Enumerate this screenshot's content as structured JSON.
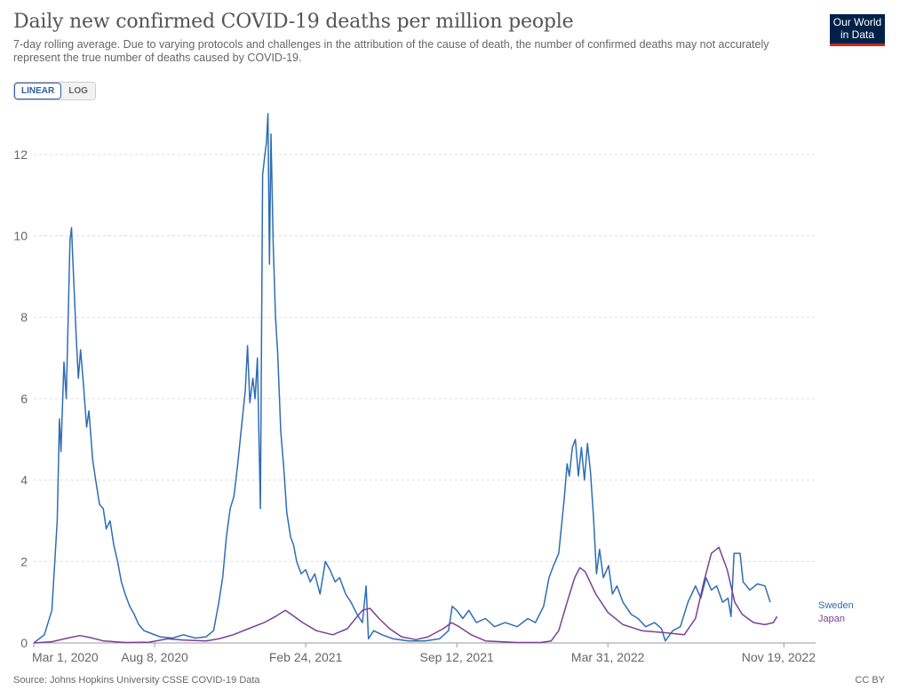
{
  "header": {
    "title": "Daily new confirmed COVID-19 deaths per million people",
    "subtitle": "7-day rolling average. Due to varying protocols and challenges in the attribution of the cause of death, the number of confirmed deaths may not accurately represent the true number of deaths caused by COVID-19.",
    "logo_line1": "Our World",
    "logo_line2": "in Data"
  },
  "toolbar": {
    "linear_label": "LINEAR",
    "log_label": "LOG",
    "active": "linear"
  },
  "footer": {
    "source": "Source: Johns Hopkins University CSSE COVID-19 Data",
    "license": "CC BY"
  },
  "colors": {
    "sweden": "#2e6db4",
    "japan": "#7b3f97",
    "grid": "#dddddd",
    "axis": "#999999"
  },
  "chart_data": {
    "type": "line",
    "title": "Daily new confirmed COVID-19 deaths per million people",
    "xlabel": "",
    "ylabel": "",
    "x_start": "2020-03-01",
    "x_end": "2022-12-31",
    "ylim": [
      0,
      13
    ],
    "yticks": [
      0,
      2,
      4,
      6,
      8,
      10,
      12
    ],
    "xticks": [
      {
        "date": "2020-03-01",
        "label": "Mar 1, 2020"
      },
      {
        "date": "2020-08-08",
        "label": "Aug 8, 2020"
      },
      {
        "date": "2021-02-24",
        "label": "Feb 24, 2021"
      },
      {
        "date": "2021-09-12",
        "label": "Sep 12, 2021"
      },
      {
        "date": "2022-03-31",
        "label": "Mar 31, 2022"
      },
      {
        "date": "2022-11-19",
        "label": "Nov 19, 2022"
      }
    ],
    "grid": "horizontal-dashed",
    "legend": "line-end labels",
    "series": [
      {
        "name": "Sweden",
        "points": [
          [
            "2020-03-01",
            0
          ],
          [
            "2020-03-15",
            0.2
          ],
          [
            "2020-03-25",
            0.8
          ],
          [
            "2020-04-01",
            3.0
          ],
          [
            "2020-04-04",
            5.5
          ],
          [
            "2020-04-06",
            4.7
          ],
          [
            "2020-04-10",
            6.9
          ],
          [
            "2020-04-13",
            6.0
          ],
          [
            "2020-04-18",
            9.9
          ],
          [
            "2020-04-20",
            10.2
          ],
          [
            "2020-04-22",
            9.3
          ],
          [
            "2020-04-26",
            7.6
          ],
          [
            "2020-04-29",
            6.5
          ],
          [
            "2020-05-02",
            7.2
          ],
          [
            "2020-05-06",
            6.3
          ],
          [
            "2020-05-10",
            5.3
          ],
          [
            "2020-05-13",
            5.7
          ],
          [
            "2020-05-18",
            4.5
          ],
          [
            "2020-05-22",
            4.0
          ],
          [
            "2020-05-27",
            3.4
          ],
          [
            "2020-06-01",
            3.3
          ],
          [
            "2020-06-05",
            2.8
          ],
          [
            "2020-06-10",
            3.0
          ],
          [
            "2020-06-15",
            2.4
          ],
          [
            "2020-06-20",
            2.0
          ],
          [
            "2020-06-25",
            1.5
          ],
          [
            "2020-06-30",
            1.2
          ],
          [
            "2020-07-06",
            0.9
          ],
          [
            "2020-07-12",
            0.7
          ],
          [
            "2020-07-18",
            0.45
          ],
          [
            "2020-07-25",
            0.3
          ],
          [
            "2020-08-01",
            0.25
          ],
          [
            "2020-08-15",
            0.15
          ],
          [
            "2020-09-01",
            0.12
          ],
          [
            "2020-09-15",
            0.2
          ],
          [
            "2020-10-01",
            0.12
          ],
          [
            "2020-10-15",
            0.15
          ],
          [
            "2020-10-25",
            0.3
          ],
          [
            "2020-11-01",
            1.0
          ],
          [
            "2020-11-06",
            1.6
          ],
          [
            "2020-11-11",
            2.6
          ],
          [
            "2020-11-16",
            3.3
          ],
          [
            "2020-11-21",
            3.6
          ],
          [
            "2020-11-26",
            4.4
          ],
          [
            "2020-12-01",
            5.3
          ],
          [
            "2020-12-06",
            6.2
          ],
          [
            "2020-12-09",
            7.3
          ],
          [
            "2020-12-12",
            5.9
          ],
          [
            "2020-12-16",
            6.5
          ],
          [
            "2020-12-19",
            6.0
          ],
          [
            "2020-12-22",
            7.0
          ],
          [
            "2020-12-26",
            3.3
          ],
          [
            "2020-12-29",
            11.5
          ],
          [
            "2021-01-01",
            12.0
          ],
          [
            "2021-01-03",
            12.3
          ],
          [
            "2021-01-05",
            13.0
          ],
          [
            "2021-01-07",
            9.3
          ],
          [
            "2021-01-09",
            12.5
          ],
          [
            "2021-01-12",
            9.8
          ],
          [
            "2021-01-15",
            8.0
          ],
          [
            "2021-01-18",
            7.1
          ],
          [
            "2021-01-22",
            5.2
          ],
          [
            "2021-01-26",
            4.3
          ],
          [
            "2021-01-30",
            3.2
          ],
          [
            "2021-02-04",
            2.6
          ],
          [
            "2021-02-08",
            2.4
          ],
          [
            "2021-02-12",
            2.0
          ],
          [
            "2021-02-18",
            1.7
          ],
          [
            "2021-02-24",
            1.8
          ],
          [
            "2021-03-02",
            1.5
          ],
          [
            "2021-03-08",
            1.7
          ],
          [
            "2021-03-15",
            1.2
          ],
          [
            "2021-03-22",
            2.0
          ],
          [
            "2021-03-28",
            1.8
          ],
          [
            "2021-04-04",
            1.5
          ],
          [
            "2021-04-10",
            1.6
          ],
          [
            "2021-04-18",
            1.2
          ],
          [
            "2021-04-25",
            1.0
          ],
          [
            "2021-05-03",
            0.7
          ],
          [
            "2021-05-10",
            0.5
          ],
          [
            "2021-05-15",
            1.4
          ],
          [
            "2021-05-18",
            0.1
          ],
          [
            "2021-05-25",
            0.3
          ],
          [
            "2021-06-05",
            0.2
          ],
          [
            "2021-06-20",
            0.1
          ],
          [
            "2021-07-10",
            0.05
          ],
          [
            "2021-08-01",
            0.05
          ],
          [
            "2021-08-20",
            0.1
          ],
          [
            "2021-09-01",
            0.3
          ],
          [
            "2021-09-06",
            0.9
          ],
          [
            "2021-09-12",
            0.8
          ],
          [
            "2021-09-20",
            0.6
          ],
          [
            "2021-09-28",
            0.8
          ],
          [
            "2021-10-08",
            0.5
          ],
          [
            "2021-10-20",
            0.6
          ],
          [
            "2021-11-01",
            0.4
          ],
          [
            "2021-11-15",
            0.5
          ],
          [
            "2021-12-01",
            0.4
          ],
          [
            "2021-12-15",
            0.6
          ],
          [
            "2021-12-25",
            0.5
          ],
          [
            "2022-01-05",
            0.9
          ],
          [
            "2022-01-12",
            1.6
          ],
          [
            "2022-01-18",
            1.9
          ],
          [
            "2022-01-25",
            2.2
          ],
          [
            "2022-02-01",
            3.5
          ],
          [
            "2022-02-05",
            4.4
          ],
          [
            "2022-02-08",
            4.1
          ],
          [
            "2022-02-12",
            4.8
          ],
          [
            "2022-02-16",
            5.0
          ],
          [
            "2022-02-20",
            4.1
          ],
          [
            "2022-02-24",
            4.8
          ],
          [
            "2022-02-28",
            4.0
          ],
          [
            "2022-03-04",
            4.9
          ],
          [
            "2022-03-08",
            4.2
          ],
          [
            "2022-03-12",
            3.1
          ],
          [
            "2022-03-16",
            1.7
          ],
          [
            "2022-03-20",
            2.3
          ],
          [
            "2022-03-25",
            1.6
          ],
          [
            "2022-04-01",
            1.9
          ],
          [
            "2022-04-06",
            1.2
          ],
          [
            "2022-04-12",
            1.4
          ],
          [
            "2022-04-20",
            1.0
          ],
          [
            "2022-05-01",
            0.7
          ],
          [
            "2022-05-10",
            0.6
          ],
          [
            "2022-05-20",
            0.4
          ],
          [
            "2022-06-01",
            0.5
          ],
          [
            "2022-06-10",
            0.35
          ],
          [
            "2022-06-15",
            0.05
          ],
          [
            "2022-06-25",
            0.3
          ],
          [
            "2022-07-05",
            0.4
          ],
          [
            "2022-07-15",
            1.0
          ],
          [
            "2022-07-25",
            1.4
          ],
          [
            "2022-08-01",
            1.1
          ],
          [
            "2022-08-08",
            1.6
          ],
          [
            "2022-08-15",
            1.3
          ],
          [
            "2022-08-22",
            1.4
          ],
          [
            "2022-08-30",
            1.0
          ],
          [
            "2022-09-06",
            1.1
          ],
          [
            "2022-09-10",
            0.65
          ],
          [
            "2022-09-14",
            2.2
          ],
          [
            "2022-09-22",
            2.2
          ],
          [
            "2022-09-26",
            1.5
          ],
          [
            "2022-10-05",
            1.3
          ],
          [
            "2022-10-15",
            1.45
          ],
          [
            "2022-10-25",
            1.4
          ],
          [
            "2022-11-01",
            1.0
          ]
        ]
      },
      {
        "name": "Japan",
        "points": [
          [
            "2020-03-01",
            0
          ],
          [
            "2020-03-25",
            0.03
          ],
          [
            "2020-04-15",
            0.12
          ],
          [
            "2020-05-01",
            0.18
          ],
          [
            "2020-05-15",
            0.13
          ],
          [
            "2020-06-01",
            0.05
          ],
          [
            "2020-07-01",
            0.01
          ],
          [
            "2020-08-01",
            0.02
          ],
          [
            "2020-08-25",
            0.1
          ],
          [
            "2020-09-15",
            0.07
          ],
          [
            "2020-10-15",
            0.05
          ],
          [
            "2020-11-01",
            0.1
          ],
          [
            "2020-11-20",
            0.2
          ],
          [
            "2020-12-10",
            0.35
          ],
          [
            "2020-12-31",
            0.5
          ],
          [
            "2021-01-15",
            0.65
          ],
          [
            "2021-01-28",
            0.8
          ],
          [
            "2021-02-05",
            0.7
          ],
          [
            "2021-02-20",
            0.5
          ],
          [
            "2021-03-10",
            0.3
          ],
          [
            "2021-04-01",
            0.2
          ],
          [
            "2021-04-20",
            0.35
          ],
          [
            "2021-05-01",
            0.6
          ],
          [
            "2021-05-10",
            0.8
          ],
          [
            "2021-05-20",
            0.85
          ],
          [
            "2021-06-01",
            0.6
          ],
          [
            "2021-06-15",
            0.35
          ],
          [
            "2021-07-01",
            0.15
          ],
          [
            "2021-07-20",
            0.08
          ],
          [
            "2021-08-05",
            0.15
          ],
          [
            "2021-08-25",
            0.35
          ],
          [
            "2021-09-05",
            0.5
          ],
          [
            "2021-09-15",
            0.4
          ],
          [
            "2021-10-01",
            0.2
          ],
          [
            "2021-10-20",
            0.05
          ],
          [
            "2021-12-01",
            0.01
          ],
          [
            "2022-01-01",
            0.01
          ],
          [
            "2022-01-15",
            0.05
          ],
          [
            "2022-01-25",
            0.3
          ],
          [
            "2022-02-05",
            1.0
          ],
          [
            "2022-02-15",
            1.6
          ],
          [
            "2022-02-22",
            1.85
          ],
          [
            "2022-03-01",
            1.75
          ],
          [
            "2022-03-15",
            1.2
          ],
          [
            "2022-03-31",
            0.75
          ],
          [
            "2022-04-20",
            0.45
          ],
          [
            "2022-05-15",
            0.3
          ],
          [
            "2022-06-15",
            0.25
          ],
          [
            "2022-07-10",
            0.2
          ],
          [
            "2022-07-25",
            0.6
          ],
          [
            "2022-08-05",
            1.5
          ],
          [
            "2022-08-15",
            2.2
          ],
          [
            "2022-08-25",
            2.35
          ],
          [
            "2022-09-05",
            1.8
          ],
          [
            "2022-09-15",
            1.0
          ],
          [
            "2022-09-25",
            0.7
          ],
          [
            "2022-10-10",
            0.5
          ],
          [
            "2022-10-25",
            0.45
          ],
          [
            "2022-11-05",
            0.5
          ],
          [
            "2022-11-10",
            0.65
          ]
        ]
      }
    ]
  }
}
